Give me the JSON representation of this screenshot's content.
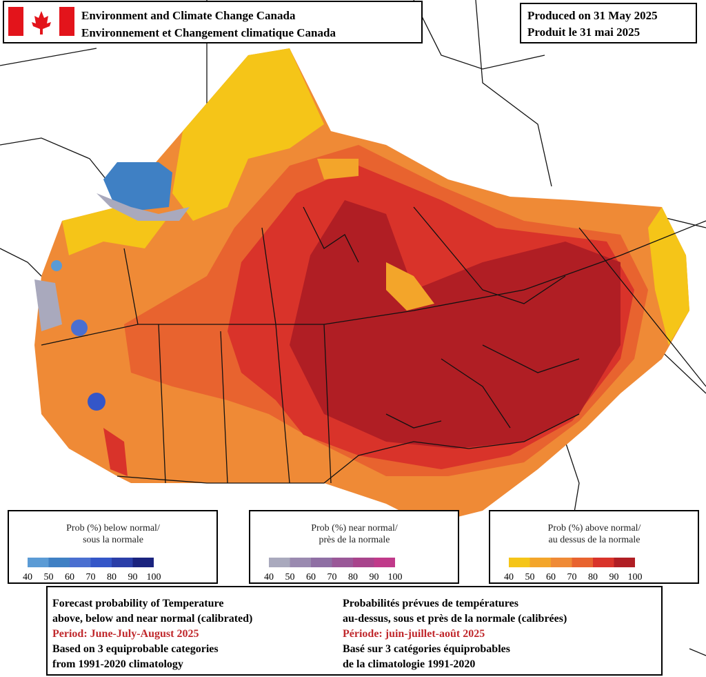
{
  "header": {
    "agency_en": "Environment and Climate Change Canada",
    "agency_fr": "Environnement et Changement climatique Canada"
  },
  "produced": {
    "en": "Produced on 31 May 2025",
    "fr": "Produit le 31 mai 2025"
  },
  "legends": [
    {
      "title_en": "Prob (%) below normal/",
      "title_fr": "sous la normale",
      "colors": [
        "#5b9bd5",
        "#3f80c4",
        "#4a6fd0",
        "#3456c8",
        "#2a3ea8",
        "#1a237e"
      ],
      "ticks": [
        40,
        50,
        60,
        70,
        80,
        90,
        100
      ]
    },
    {
      "title_en": "Prob (%) near normal/",
      "title_fr": "près de la normale",
      "colors": [
        "#a9a9bd",
        "#9a8ab0",
        "#8f6fa4",
        "#9a5898",
        "#a8448c",
        "#c03a8a"
      ],
      "ticks": [
        40,
        50,
        60,
        70,
        80,
        90,
        100
      ]
    },
    {
      "title_en": "Prob (%) above normal/",
      "title_fr": "au dessus de la normale",
      "colors": [
        "#f5c518",
        "#f3a52a",
        "#ef8a36",
        "#e8632f",
        "#d9332a",
        "#b01e24"
      ],
      "ticks": [
        40,
        50,
        60,
        70,
        80,
        90,
        100
      ]
    }
  ],
  "footer": {
    "en": [
      "Forecast probability of Temperature",
      "above, below and near normal (calibrated)",
      "Period: June-July-August 2025",
      "Based on 3 equiprobable categories",
      " from 1991-2020 climatology"
    ],
    "fr": [
      "Probabilités prévues de températures",
      "au-dessus, sous et près de la normale (calibrées)",
      "Période: juin-juillet-août 2025",
      "Basé sur 3 catégories équiprobables",
      "de la climatologie 1991-2020"
    ]
  }
}
